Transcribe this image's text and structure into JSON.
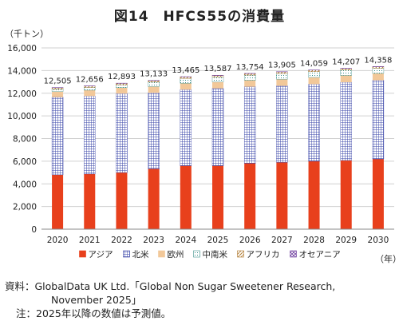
{
  "chart_data": {
    "type": "stacked-bar",
    "title": "図14　HFCS55の消費量",
    "ylabel": "（千トン）",
    "xlabel": "（年）",
    "ylim": [
      0,
      16000
    ],
    "yticks": [
      "0",
      "2,000",
      "4,000",
      "6,000",
      "8,000",
      "10,000",
      "12,000",
      "14,000",
      "16,000"
    ],
    "grid": true,
    "legend_position": "bottom",
    "categories": [
      "2020",
      "2021",
      "2022",
      "2023",
      "2024",
      "2025",
      "2026",
      "2027",
      "2028",
      "2029",
      "2030"
    ],
    "totals": [
      12505,
      12656,
      12893,
      13133,
      13465,
      13587,
      13754,
      13905,
      14059,
      14207,
      14358
    ],
    "total_labels": [
      "12,505",
      "12,656",
      "12,893",
      "13,133",
      "13,465",
      "13,587",
      "13,754",
      "13,905",
      "14,059",
      "14,207",
      "14,358"
    ],
    "series": [
      {
        "name": "アジア",
        "color": "#e8401c",
        "pattern": "solid",
        "values": [
          4800,
          4870,
          5000,
          5330,
          5600,
          5600,
          5820,
          5900,
          6000,
          6070,
          6200
        ]
      },
      {
        "name": "北米",
        "color": "#3a45a8",
        "pattern": "grid",
        "values": [
          6850,
          6880,
          6970,
          6700,
          6720,
          6820,
          6750,
          6750,
          6800,
          6900,
          6940
        ]
      },
      {
        "name": "欧州",
        "color": "#f2c899",
        "pattern": "solid",
        "values": [
          500,
          520,
          520,
          560,
          560,
          570,
          580,
          590,
          600,
          600,
          610
        ]
      },
      {
        "name": "中南米",
        "color": "#3a8f8a",
        "pattern": "dots",
        "values": [
          215,
          240,
          250,
          390,
          430,
          440,
          450,
          500,
          500,
          480,
          460
        ]
      },
      {
        "name": "アフリカ",
        "color": "#b07a30",
        "pattern": "diagonal",
        "values": [
          120,
          126,
          133,
          133,
          135,
          137,
          134,
          145,
          139,
          137,
          128
        ]
      },
      {
        "name": "オセアニア",
        "color": "#7040a0",
        "pattern": "cross",
        "values": [
          20,
          20,
          20,
          20,
          20,
          20,
          20,
          20,
          20,
          20,
          20
        ]
      }
    ]
  },
  "footer": {
    "line1": "資料：GlobalData UK Ltd.「Global Non Sugar Sweetener Research,",
    "line2": "November 2025」",
    "line3": "注：2025年以降の数値は予測値。"
  }
}
